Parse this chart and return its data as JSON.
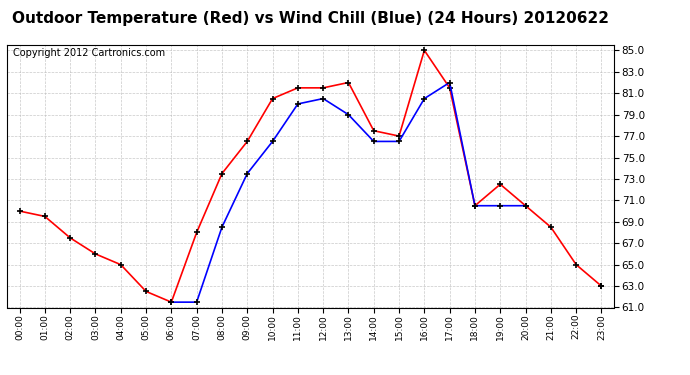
{
  "title": "Outdoor Temperature (Red) vs Wind Chill (Blue) (24 Hours) 20120622",
  "copyright_text": "Copyright 2012 Cartronics.com",
  "hours": [
    0,
    1,
    2,
    3,
    4,
    5,
    6,
    7,
    8,
    9,
    10,
    11,
    12,
    13,
    14,
    15,
    16,
    17,
    18,
    19,
    20,
    21,
    22,
    23
  ],
  "temp_red": [
    70.0,
    69.5,
    67.5,
    66.0,
    65.0,
    62.5,
    61.5,
    68.0,
    73.5,
    76.5,
    80.5,
    81.5,
    81.5,
    82.0,
    77.5,
    77.0,
    85.0,
    81.5,
    70.5,
    72.5,
    70.5,
    68.5,
    65.0,
    63.0
  ],
  "wind_chill_blue": [
    null,
    null,
    null,
    null,
    null,
    null,
    61.5,
    61.5,
    68.5,
    73.5,
    76.5,
    80.0,
    80.5,
    79.0,
    76.5,
    76.5,
    80.5,
    82.0,
    70.5,
    70.5,
    70.5,
    null,
    null,
    63.0
  ],
  "ylim": [
    61.0,
    85.5
  ],
  "yticks": [
    61.0,
    63.0,
    65.0,
    67.0,
    69.0,
    71.0,
    73.0,
    75.0,
    77.0,
    79.0,
    81.0,
    83.0,
    85.0
  ],
  "red_color": "#ff0000",
  "blue_color": "#0000ff",
  "bg_color": "#ffffff",
  "plot_bg_color": "#ffffff",
  "grid_color": "#bbbbbb",
  "title_fontsize": 11,
  "copyright_fontsize": 7
}
